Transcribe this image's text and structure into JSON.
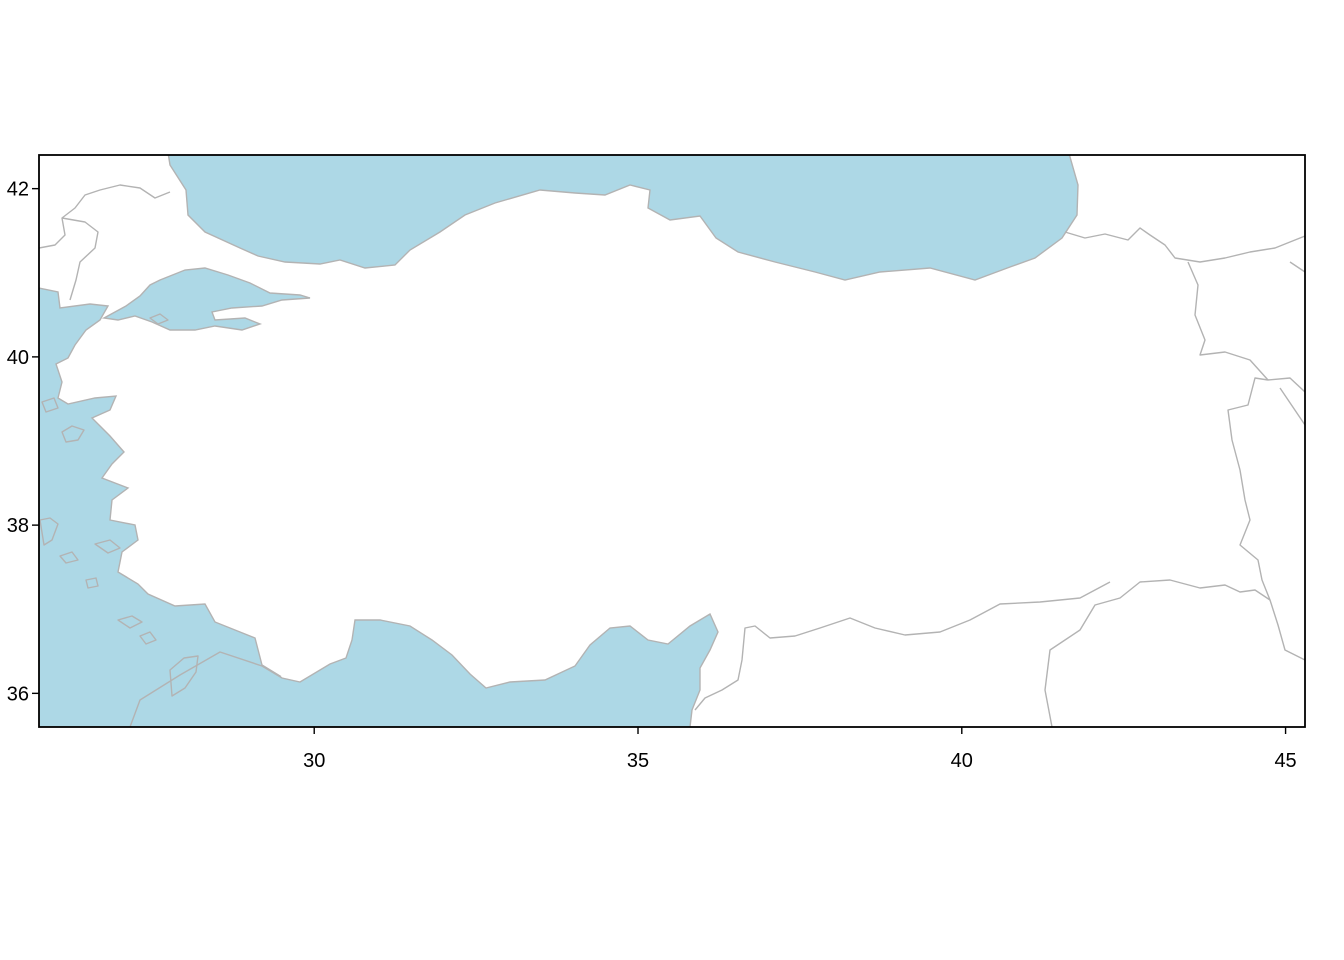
{
  "map": {
    "type": "map",
    "region": "Turkey",
    "xlim": [
      25.75,
      45.3
    ],
    "ylim": [
      35.6,
      42.4
    ],
    "x_ticks": [
      30,
      35,
      40,
      45
    ],
    "y_ticks": [
      36,
      38,
      40,
      42
    ],
    "x_tick_labels": [
      "30",
      "35",
      "40",
      "45"
    ],
    "y_tick_labels": [
      "36",
      "38",
      "40",
      "42"
    ],
    "colors": {
      "water": "#add8e6",
      "land": "#ffffff",
      "borders": "#b3b3b3",
      "frame": "#000000"
    }
  }
}
